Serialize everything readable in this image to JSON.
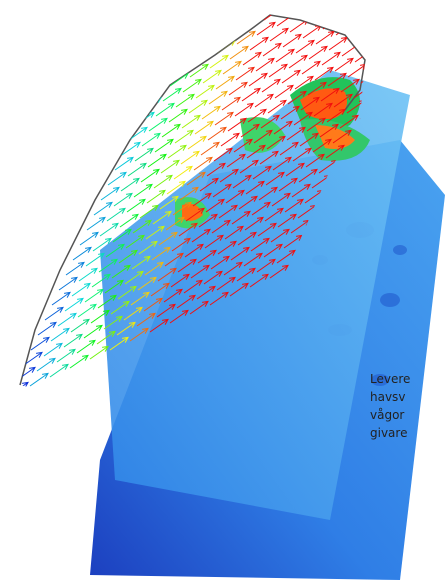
{
  "caption": {
    "lines": [
      "Levere",
      "havsv",
      "vågor",
      "givare"
    ]
  }
}
